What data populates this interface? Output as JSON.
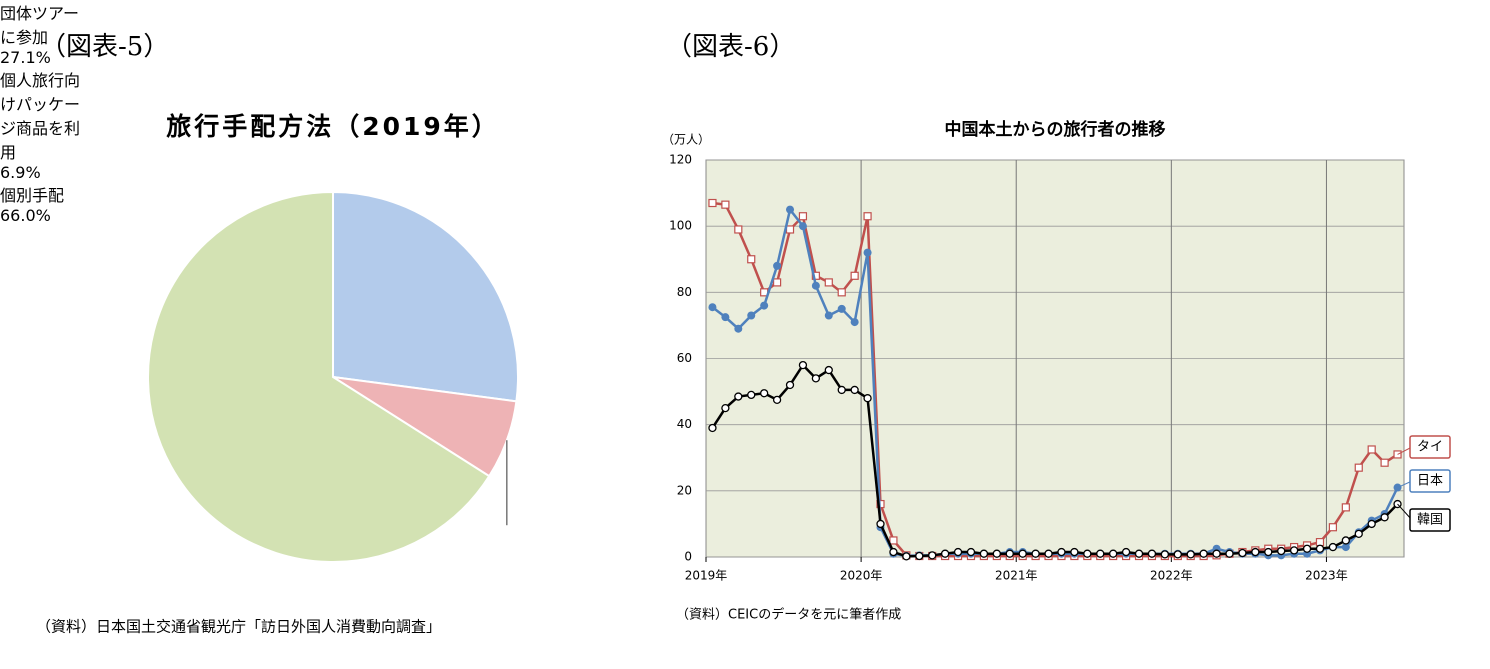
{
  "chart_data": [
    {
      "type": "pie",
      "label": "（図表-5）",
      "title": "旅行手配方法（2019年）",
      "categories": [
        "団体ツアーに参加",
        "個人旅行向けパッケージ商品を利用",
        "個別手配"
      ],
      "values": [
        27.1,
        6.9,
        66.0
      ],
      "value_labels": [
        "27.1%",
        "6.9%",
        "66.0%"
      ],
      "colors": [
        "#b3cbeb",
        "#eeb3b5",
        "#d3e2b3"
      ],
      "source": "（資料）日本国土交通省観光庁「訪日外国人消費動向調査」"
    },
    {
      "type": "line",
      "label": "（図表-6）",
      "title": "中国本土からの旅行者の推移",
      "y_unit_label": "（万人）",
      "categories": [
        "2019年",
        null,
        null,
        null,
        null,
        null,
        null,
        null,
        null,
        null,
        null,
        null,
        "2020年",
        null,
        null,
        null,
        null,
        null,
        null,
        null,
        null,
        null,
        null,
        null,
        "2021年",
        null,
        null,
        null,
        null,
        null,
        null,
        null,
        null,
        null,
        null,
        null,
        "2022年",
        null,
        null,
        null,
        null,
        null,
        null,
        null,
        null,
        null,
        null,
        null,
        "2023年",
        null,
        null,
        null,
        null,
        null
      ],
      "series": [
        {
          "name": "タイ",
          "color": "#c0504d",
          "marker": "square",
          "values": [
            107,
            106.5,
            99,
            90,
            80,
            83,
            99,
            103,
            85,
            83,
            80,
            85,
            103,
            16,
            5,
            0.5,
            0.3,
            0.3,
            0.3,
            0.3,
            0.3,
            0.3,
            0.3,
            0.3,
            0.3,
            0.3,
            0.3,
            0.3,
            0.3,
            0.3,
            0.3,
            0.3,
            0.3,
            0.3,
            0.3,
            0.3,
            0.3,
            0.3,
            0.3,
            0.5,
            1,
            1.5,
            2,
            2.5,
            2.5,
            3,
            3.5,
            4.5,
            9,
            15,
            27,
            32.5,
            28.5,
            31
          ]
        },
        {
          "name": "日本",
          "color": "#4f81bd",
          "marker": "dot",
          "values": [
            75.5,
            72.5,
            69,
            73,
            76,
            88,
            105,
            100,
            82,
            73,
            75,
            71,
            92,
            9,
            1,
            0.3,
            0.5,
            0.5,
            1,
            1,
            1,
            1,
            1,
            1.5,
            1.5,
            1,
            1,
            1,
            1,
            1,
            1,
            1,
            1,
            1,
            1,
            1,
            1,
            1,
            1,
            2.5,
            1.5,
            1,
            1,
            0.5,
            0.5,
            1,
            1,
            2,
            3,
            3,
            7.5,
            11,
            13,
            21
          ]
        },
        {
          "name": "韓国",
          "color": "#000000",
          "marker": "circle",
          "values": [
            39,
            45,
            48.5,
            49,
            49.5,
            47.5,
            52,
            58,
            54,
            56.5,
            50.5,
            50.5,
            48,
            10,
            1.5,
            0.2,
            0.3,
            0.5,
            1,
            1.5,
            1.5,
            1,
            1,
            1,
            1,
            1,
            1,
            1.5,
            1.5,
            1,
            1,
            1,
            1.5,
            1,
            1,
            0.8,
            0.8,
            0.8,
            1,
            1,
            1,
            1.2,
            1.5,
            1.5,
            1.8,
            2,
            2.5,
            2.5,
            3,
            5,
            7,
            10,
            12,
            16
          ]
        }
      ],
      "ylim": [
        0,
        120
      ],
      "yticks": [
        0,
        20,
        40,
        60,
        80,
        100,
        120
      ],
      "grid": true,
      "background": "#ebeedd",
      "source": "（資料）CEICのデータを元に筆者作成"
    }
  ]
}
